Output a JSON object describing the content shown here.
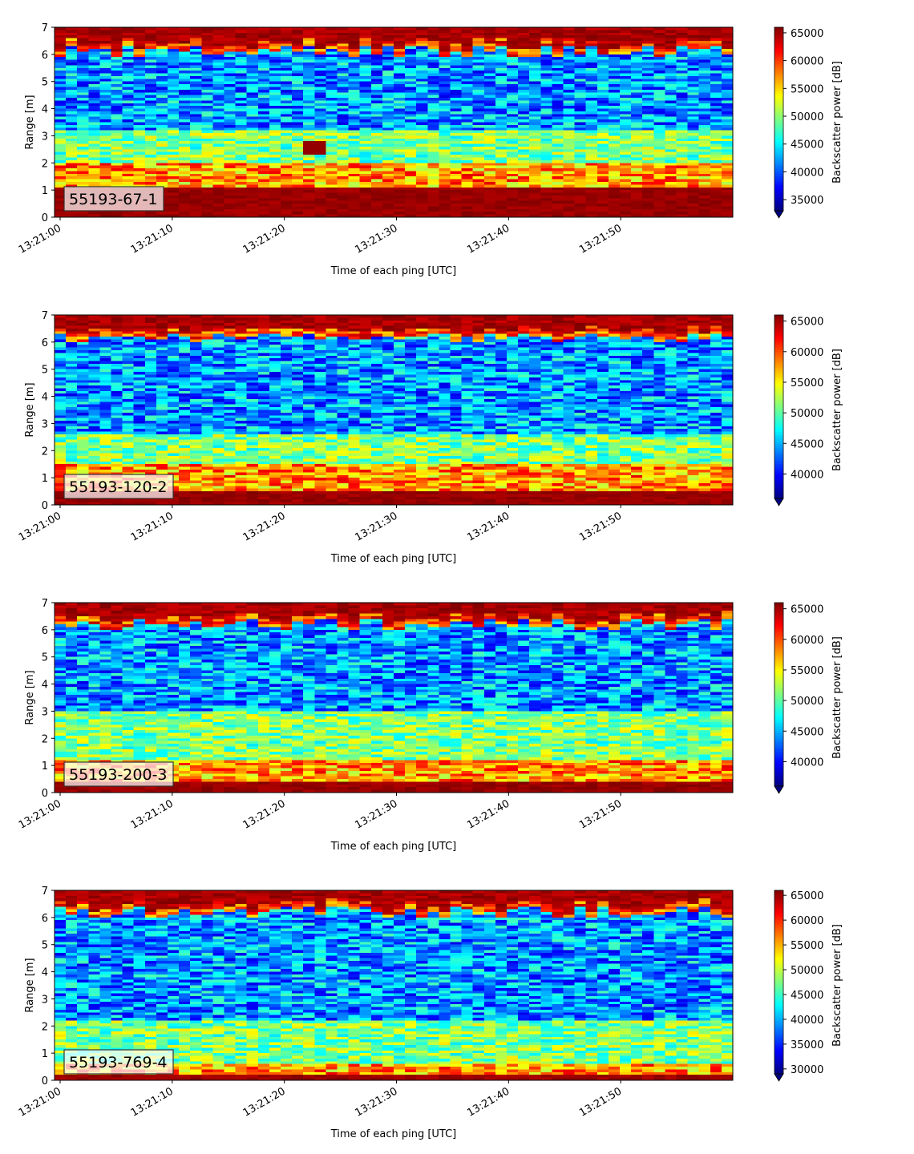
{
  "chart_data": [
    {
      "type": "heatmap",
      "panel_label": "55193-67-1",
      "xlabel": "Time of each ping [UTC]",
      "ylabel": "Range [m]",
      "x_range": [
        "13:21:00",
        "13:21:59"
      ],
      "ylim": [
        0,
        7
      ],
      "x_ticks": [
        "13:21:00",
        "13:21:10",
        "13:21:20",
        "13:21:30",
        "13:21:40",
        "13:21:50"
      ],
      "y_ticks": [
        "0",
        "1",
        "2",
        "3",
        "4",
        "5",
        "6",
        "7"
      ],
      "colorbar": {
        "label": "Backscatter power [dB]",
        "range": [
          33000,
          66000
        ],
        "ticks": [
          "35000",
          "40000",
          "45000",
          "50000",
          "55000",
          "60000",
          "65000"
        ],
        "extend": "min",
        "colormap": "jet"
      },
      "profile": {
        "surface_band": [
          6.1,
          6.6
        ],
        "near_field_top": 1.1,
        "high_band": [
          1.2,
          2.0
        ],
        "mid_band": [
          2.2,
          3.2
        ],
        "anomaly": {
          "time": "13:21:22",
          "range": [
            2.3,
            2.8
          ]
        }
      }
    },
    {
      "type": "heatmap",
      "panel_label": "55193-120-2",
      "xlabel": "Time of each ping [UTC]",
      "ylabel": "Range [m]",
      "x_range": [
        "13:21:00",
        "13:21:59"
      ],
      "ylim": [
        0,
        7
      ],
      "x_ticks": [
        "13:21:00",
        "13:21:10",
        "13:21:20",
        "13:21:30",
        "13:21:40",
        "13:21:50"
      ],
      "y_ticks": [
        "0",
        "1",
        "2",
        "3",
        "4",
        "5",
        "6",
        "7"
      ],
      "colorbar": {
        "label": "Backscatter power [dB]",
        "range": [
          36000,
          66000
        ],
        "ticks": [
          "40000",
          "45000",
          "50000",
          "55000",
          "60000",
          "65000"
        ],
        "extend": "min",
        "colormap": "jet"
      },
      "profile": {
        "surface_band": [
          6.2,
          6.6
        ],
        "near_field_top": 0.5,
        "high_band": [
          0.6,
          1.5
        ],
        "mid_band": [
          1.5,
          2.6
        ]
      }
    },
    {
      "type": "heatmap",
      "panel_label": "55193-200-3",
      "xlabel": "Time of each ping [UTC]",
      "ylabel": "Range [m]",
      "x_range": [
        "13:21:00",
        "13:21:59"
      ],
      "ylim": [
        0,
        7
      ],
      "x_ticks": [
        "13:21:00",
        "13:21:10",
        "13:21:20",
        "13:21:30",
        "13:21:40",
        "13:21:50"
      ],
      "y_ticks": [
        "0",
        "1",
        "2",
        "3",
        "4",
        "5",
        "6",
        "7"
      ],
      "colorbar": {
        "label": "Backscatter power [dB]",
        "range": [
          36000,
          66000
        ],
        "ticks": [
          "40000",
          "45000",
          "50000",
          "55000",
          "60000",
          "65000"
        ],
        "extend": "min",
        "colormap": "jet"
      },
      "profile": {
        "surface_band": [
          6.2,
          6.7
        ],
        "near_field_top": 0.4,
        "high_band": [
          0.4,
          1.2
        ],
        "mid_band": [
          1.2,
          3.0
        ]
      }
    },
    {
      "type": "heatmap",
      "panel_label": "55193-769-4",
      "xlabel": "Time of each ping [UTC]",
      "ylabel": "Range [m]",
      "x_range": [
        "13:21:00",
        "13:21:59"
      ],
      "ylim": [
        0,
        7
      ],
      "x_ticks": [
        "13:21:00",
        "13:21:10",
        "13:21:20",
        "13:21:30",
        "13:21:40",
        "13:21:50"
      ],
      "y_ticks": [
        "0",
        "1",
        "2",
        "3",
        "4",
        "5",
        "6",
        "7"
      ],
      "colorbar": {
        "label": "Backscatter power [dB]",
        "range": [
          29000,
          66000
        ],
        "ticks": [
          "30000",
          "35000",
          "40000",
          "45000",
          "50000",
          "55000",
          "60000",
          "65000"
        ],
        "extend": "min",
        "colormap": "jet"
      },
      "profile": {
        "surface_band": [
          6.2,
          6.7
        ],
        "near_field_top": 0.25,
        "high_band": [
          0.25,
          0.6
        ],
        "mid_band": [
          0.6,
          2.2
        ]
      }
    }
  ]
}
